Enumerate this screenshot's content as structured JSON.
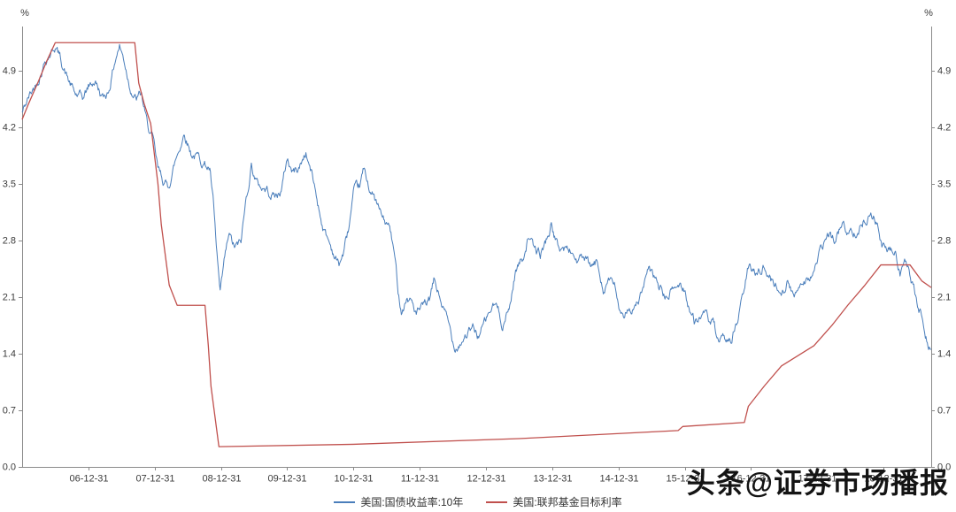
{
  "page": {
    "background": "#ffffff"
  },
  "watermark": {
    "text": "头条@证券市场播报"
  },
  "legend": {
    "items": [
      {
        "label": "美国:国债收益率:10年",
        "color": "#4a7ebb"
      },
      {
        "label": "美国:联邦基金目标利率",
        "color": "#c0504d"
      }
    ]
  },
  "chart_data": {
    "type": "line",
    "title": "",
    "ylabel_left": "%",
    "ylabel_right": "%",
    "ylim": [
      0,
      5.45
    ],
    "y_ticks": [
      0.0,
      0.7,
      1.4,
      2.1,
      2.8,
      3.5,
      4.2,
      4.9
    ],
    "x_domain": [
      2006.0,
      2019.72
    ],
    "x_tick_years": [
      2007,
      2008,
      2009,
      2010,
      2011,
      2012,
      2013,
      2014,
      2015,
      2016,
      2017,
      2018,
      2019
    ],
    "x_tick_labels": [
      "06-12-31",
      "07-12-31",
      "08-12-31",
      "09-12-31",
      "10-12-31",
      "11-12-31",
      "12-12-31",
      "13-12-31",
      "14-12-31",
      "15-12-31",
      "16-12-31",
      "17-12-31",
      "18-12-31"
    ],
    "grid": false,
    "legend_position": "bottom",
    "series": [
      {
        "name": "美国:国债收益率:10年",
        "color": "#4a7ebb",
        "style": "noisy",
        "keypoints": [
          [
            2006.0,
            4.38
          ],
          [
            2006.1,
            4.57
          ],
          [
            2006.2,
            4.72
          ],
          [
            2006.35,
            5.05
          ],
          [
            2006.5,
            5.22
          ],
          [
            2006.58,
            5.05
          ],
          [
            2006.7,
            4.78
          ],
          [
            2006.8,
            4.6
          ],
          [
            2006.92,
            4.55
          ],
          [
            2007.0,
            4.7
          ],
          [
            2007.1,
            4.78
          ],
          [
            2007.22,
            4.55
          ],
          [
            2007.3,
            4.65
          ],
          [
            2007.42,
            5.1
          ],
          [
            2007.47,
            5.22
          ],
          [
            2007.55,
            5.0
          ],
          [
            2007.62,
            4.75
          ],
          [
            2007.72,
            4.55
          ],
          [
            2007.8,
            4.6
          ],
          [
            2007.88,
            4.25
          ],
          [
            2007.97,
            4.05
          ],
          [
            2008.05,
            3.65
          ],
          [
            2008.2,
            3.45
          ],
          [
            2008.3,
            3.75
          ],
          [
            2008.45,
            4.15
          ],
          [
            2008.55,
            3.9
          ],
          [
            2008.7,
            3.8
          ],
          [
            2008.83,
            3.7
          ],
          [
            2008.88,
            3.3
          ],
          [
            2008.93,
            2.7
          ],
          [
            2008.99,
            2.1
          ],
          [
            2009.05,
            2.5
          ],
          [
            2009.12,
            2.85
          ],
          [
            2009.2,
            2.7
          ],
          [
            2009.3,
            2.75
          ],
          [
            2009.38,
            3.3
          ],
          [
            2009.46,
            3.75
          ],
          [
            2009.55,
            3.5
          ],
          [
            2009.65,
            3.45
          ],
          [
            2009.75,
            3.4
          ],
          [
            2009.85,
            3.35
          ],
          [
            2009.92,
            3.45
          ],
          [
            2010.0,
            3.82
          ],
          [
            2010.08,
            3.65
          ],
          [
            2010.18,
            3.7
          ],
          [
            2010.28,
            3.9
          ],
          [
            2010.38,
            3.6
          ],
          [
            2010.48,
            3.2
          ],
          [
            2010.55,
            2.95
          ],
          [
            2010.65,
            2.75
          ],
          [
            2010.78,
            2.5
          ],
          [
            2010.85,
            2.65
          ],
          [
            2010.93,
            2.95
          ],
          [
            2011.0,
            3.35
          ],
          [
            2011.1,
            3.45
          ],
          [
            2011.15,
            3.65
          ],
          [
            2011.25,
            3.45
          ],
          [
            2011.35,
            3.25
          ],
          [
            2011.45,
            3.05
          ],
          [
            2011.55,
            2.95
          ],
          [
            2011.62,
            2.6
          ],
          [
            2011.68,
            2.15
          ],
          [
            2011.73,
            1.95
          ],
          [
            2011.8,
            2.1
          ],
          [
            2011.88,
            2.05
          ],
          [
            2011.95,
            1.9
          ],
          [
            2012.05,
            1.95
          ],
          [
            2012.15,
            2.05
          ],
          [
            2012.22,
            2.3
          ],
          [
            2012.32,
            2.05
          ],
          [
            2012.42,
            1.8
          ],
          [
            2012.52,
            1.5
          ],
          [
            2012.6,
            1.55
          ],
          [
            2012.7,
            1.65
          ],
          [
            2012.8,
            1.7
          ],
          [
            2012.88,
            1.62
          ],
          [
            2012.97,
            1.75
          ],
          [
            2013.08,
            1.95
          ],
          [
            2013.15,
            2.0
          ],
          [
            2013.25,
            1.78
          ],
          [
            2013.35,
            1.95
          ],
          [
            2013.45,
            2.45
          ],
          [
            2013.55,
            2.58
          ],
          [
            2013.65,
            2.9
          ],
          [
            2013.72,
            2.68
          ],
          [
            2013.82,
            2.62
          ],
          [
            2013.9,
            2.78
          ],
          [
            2013.99,
            3.0
          ],
          [
            2014.08,
            2.72
          ],
          [
            2014.18,
            2.7
          ],
          [
            2014.28,
            2.68
          ],
          [
            2014.38,
            2.55
          ],
          [
            2014.48,
            2.58
          ],
          [
            2014.58,
            2.45
          ],
          [
            2014.68,
            2.52
          ],
          [
            2014.78,
            2.22
          ],
          [
            2014.85,
            2.35
          ],
          [
            2014.95,
            2.2
          ],
          [
            2015.03,
            1.9
          ],
          [
            2015.08,
            1.75
          ],
          [
            2015.15,
            2.0
          ],
          [
            2015.25,
            1.95
          ],
          [
            2015.35,
            2.15
          ],
          [
            2015.45,
            2.4
          ],
          [
            2015.55,
            2.32
          ],
          [
            2015.65,
            2.18
          ],
          [
            2015.72,
            2.08
          ],
          [
            2015.82,
            2.2
          ],
          [
            2015.92,
            2.25
          ],
          [
            2016.0,
            2.2
          ],
          [
            2016.08,
            1.95
          ],
          [
            2016.15,
            1.78
          ],
          [
            2016.25,
            1.9
          ],
          [
            2016.35,
            1.82
          ],
          [
            2016.45,
            1.72
          ],
          [
            2016.52,
            1.45
          ],
          [
            2016.6,
            1.55
          ],
          [
            2016.7,
            1.6
          ],
          [
            2016.78,
            1.75
          ],
          [
            2016.88,
            2.1
          ],
          [
            2016.95,
            2.45
          ],
          [
            2017.05,
            2.4
          ],
          [
            2017.18,
            2.5
          ],
          [
            2017.3,
            2.32
          ],
          [
            2017.45,
            2.18
          ],
          [
            2017.55,
            2.3
          ],
          [
            2017.65,
            2.08
          ],
          [
            2017.75,
            2.32
          ],
          [
            2017.85,
            2.35
          ],
          [
            2017.95,
            2.42
          ],
          [
            2018.05,
            2.65
          ],
          [
            2018.15,
            2.85
          ],
          [
            2018.25,
            2.8
          ],
          [
            2018.38,
            3.0
          ],
          [
            2018.48,
            2.88
          ],
          [
            2018.58,
            2.95
          ],
          [
            2018.68,
            3.02
          ],
          [
            2018.8,
            3.18
          ],
          [
            2018.88,
            3.08
          ],
          [
            2018.98,
            2.72
          ],
          [
            2019.08,
            2.68
          ],
          [
            2019.18,
            2.62
          ],
          [
            2019.25,
            2.42
          ],
          [
            2019.33,
            2.52
          ],
          [
            2019.42,
            2.28
          ],
          [
            2019.5,
            2.05
          ],
          [
            2019.58,
            1.85
          ],
          [
            2019.65,
            1.6
          ],
          [
            2019.72,
            1.46
          ]
        ]
      },
      {
        "name": "美国:联邦基金目标利率",
        "color": "#c0504d",
        "style": "plain",
        "keypoints": [
          [
            2006.0,
            4.3
          ],
          [
            2006.1,
            4.5
          ],
          [
            2006.25,
            4.78
          ],
          [
            2006.37,
            5.02
          ],
          [
            2006.5,
            5.25
          ],
          [
            2007.7,
            5.25
          ],
          [
            2007.76,
            4.75
          ],
          [
            2007.84,
            4.5
          ],
          [
            2007.94,
            4.25
          ],
          [
            2008.05,
            3.5
          ],
          [
            2008.1,
            3.0
          ],
          [
            2008.22,
            2.25
          ],
          [
            2008.34,
            2.0
          ],
          [
            2008.76,
            2.0
          ],
          [
            2008.81,
            1.5
          ],
          [
            2008.85,
            1.0
          ],
          [
            2008.97,
            0.25
          ],
          [
            2011.0,
            0.28
          ],
          [
            2013.5,
            0.35
          ],
          [
            2015.9,
            0.45
          ],
          [
            2015.97,
            0.5
          ],
          [
            2016.9,
            0.55
          ],
          [
            2016.96,
            0.75
          ],
          [
            2017.2,
            1.0
          ],
          [
            2017.46,
            1.25
          ],
          [
            2017.95,
            1.5
          ],
          [
            2018.22,
            1.75
          ],
          [
            2018.46,
            2.0
          ],
          [
            2018.72,
            2.25
          ],
          [
            2018.96,
            2.5
          ],
          [
            2019.4,
            2.5
          ],
          [
            2019.58,
            2.3
          ],
          [
            2019.72,
            2.22
          ]
        ]
      }
    ]
  }
}
